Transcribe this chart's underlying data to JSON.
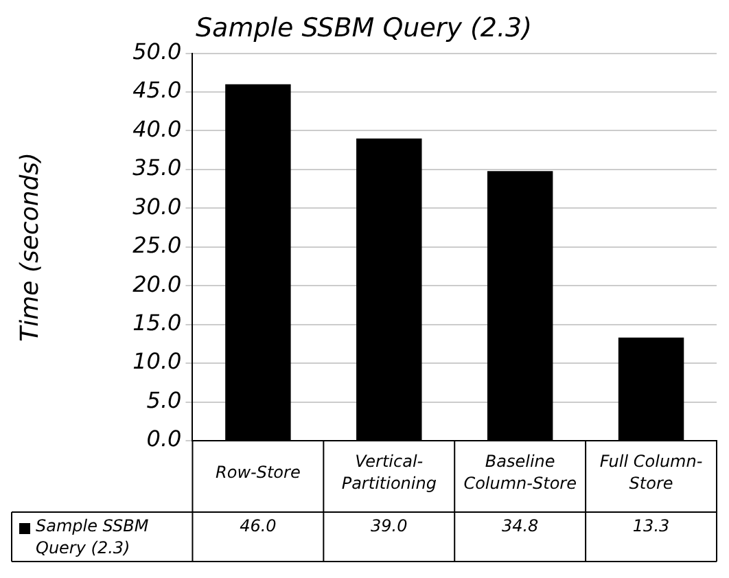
{
  "chart_data": {
    "type": "bar",
    "title": "Sample SSBM Query (2.3)",
    "ylabel": "Time (seconds)",
    "categories": [
      "Row-Store",
      "Vertical-Partitioning",
      "Baseline Column-Store",
      "Full Column-Store"
    ],
    "series": [
      {
        "name": "Sample SSBM Query (2.3)",
        "color": "#000000",
        "values": [
          46.0,
          39.0,
          34.8,
          13.3
        ],
        "value_labels": [
          "46.0",
          "39.0",
          "34.8",
          "13.3"
        ]
      }
    ],
    "ylim": [
      0,
      50
    ],
    "yticks": [
      {
        "value": 0,
        "label": "0.0"
      },
      {
        "value": 5,
        "label": "5.0"
      },
      {
        "value": 10,
        "label": "10.0"
      },
      {
        "value": 15,
        "label": "15.0"
      },
      {
        "value": 20,
        "label": "20.0"
      },
      {
        "value": 25,
        "label": "25.0"
      },
      {
        "value": 30,
        "label": "30.0"
      },
      {
        "value": 35,
        "label": "35.0"
      },
      {
        "value": 40,
        "label": "40.0"
      },
      {
        "value": 45,
        "label": "45.0"
      },
      {
        "value": 50,
        "label": "50.0"
      }
    ],
    "grid": "y",
    "legend": "bottom"
  }
}
